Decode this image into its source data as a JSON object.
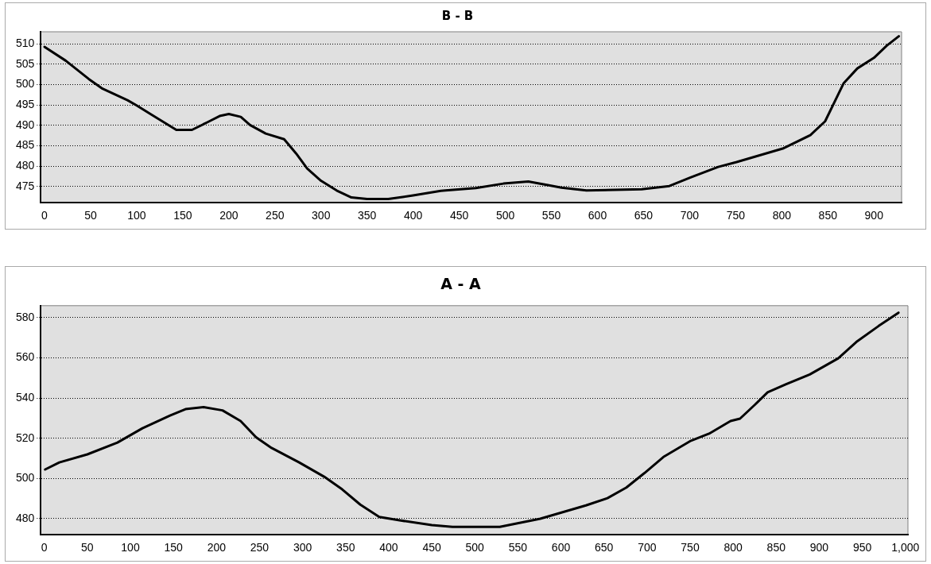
{
  "chart_data": [
    {
      "type": "line",
      "title": "B - B",
      "xlim": [
        -4,
        930
      ],
      "xticks": [
        0,
        50,
        100,
        150,
        200,
        250,
        300,
        350,
        400,
        450,
        500,
        550,
        600,
        650,
        700,
        750,
        800,
        850,
        900
      ],
      "ylim": [
        471,
        513
      ],
      "yticks": [
        475,
        480,
        485,
        490,
        495,
        500,
        505,
        510
      ],
      "grid": "y",
      "legend": false,
      "marker": "none",
      "line_style": "solid",
      "series": [
        {
          "color": "#000000",
          "x": [
            0,
            23,
            48,
            63,
            90,
            100,
            117,
            143,
            160,
            177,
            190,
            200,
            213,
            223,
            240,
            260,
            273,
            285,
            300,
            317,
            333,
            350,
            373,
            400,
            430,
            435,
            468,
            498,
            525,
            545,
            561,
            588,
            648,
            678,
            701,
            731,
            751,
            801,
            831,
            847,
            867,
            882,
            900,
            914,
            927
          ],
          "values": [
            509.3,
            505.9,
            501.4,
            499,
            496.2,
            494.9,
            492.5,
            488.9,
            488.9,
            490.8,
            492.3,
            492.8,
            492.1,
            490.1,
            488,
            486.6,
            483.1,
            479.4,
            476.4,
            474,
            472.3,
            471.9,
            471.9,
            472.8,
            473.9,
            474,
            474.6,
            475.7,
            476.2,
            475.4,
            474.7,
            474,
            474.3,
            475.1,
            477.2,
            479.8,
            481,
            484.3,
            487.6,
            491,
            500.3,
            504,
            506.6,
            509.6,
            511.9
          ]
        }
      ]
    },
    {
      "type": "line",
      "title": "A - A",
      "xlim": [
        -4,
        1003
      ],
      "xticks": [
        0,
        50,
        100,
        150,
        200,
        250,
        300,
        350,
        400,
        450,
        500,
        550,
        600,
        650,
        700,
        750,
        800,
        850,
        900,
        950,
        {
          "value": 1000,
          "label": "1,000"
        }
      ],
      "ylim": [
        472,
        586
      ],
      "yticks": [
        480,
        500,
        520,
        540,
        560,
        580
      ],
      "grid": "y",
      "legend": false,
      "marker": "none",
      "line_style": "solid",
      "series": [
        {
          "color": "#000000",
          "x": [
            1,
            17.5,
            50,
            85,
            114,
            146,
            164,
            185,
            207,
            228,
            246,
            264,
            296,
            325,
            346,
            367,
            389,
            414,
            450,
            474,
            529,
            576,
            629,
            654,
            676,
            697,
            719,
            751,
            772,
            797,
            808,
            825,
            840,
            861,
            889,
            922,
            943,
            969,
            992
          ],
          "values": [
            504.5,
            508,
            512,
            517.9,
            525,
            531.3,
            534.5,
            535.5,
            533.9,
            528.6,
            520.5,
            515.2,
            508,
            500.9,
            494.6,
            487,
            480.9,
            479.1,
            476.8,
            475.9,
            475.9,
            480,
            486.6,
            490.2,
            495.5,
            502.7,
            510.7,
            518.8,
            522.3,
            528.6,
            529.8,
            536.6,
            542.9,
            546.8,
            551.8,
            559.8,
            567.9,
            575.9,
            582.5
          ]
        }
      ]
    }
  ]
}
